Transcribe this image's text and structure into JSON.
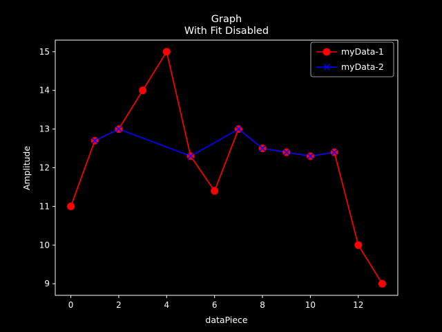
{
  "chart_data": {
    "type": "line",
    "title": "Graph",
    "subtitle": "With Fit Disabled",
    "xlabel": "dataPiece",
    "ylabel": "Amplitude",
    "xlim": [
      -0.65,
      13.65
    ],
    "ylim": [
      8.7,
      15.3
    ],
    "xticks": [
      0,
      2,
      4,
      6,
      8,
      10,
      12
    ],
    "yticks": [
      9,
      10,
      11,
      12,
      13,
      14,
      15
    ],
    "grid": false,
    "legend_position": "top-right",
    "background": "#000000",
    "series": [
      {
        "name": "myData-1",
        "color": "#ff0000",
        "marker": "circle",
        "x": [
          0,
          1,
          2,
          3,
          4,
          5,
          6,
          7,
          8,
          9,
          10,
          11,
          12,
          13
        ],
        "y": [
          11,
          12.7,
          13,
          14,
          15,
          12.3,
          11.4,
          13,
          12.5,
          12.4,
          12.3,
          12.4,
          10,
          9
        ]
      },
      {
        "name": "myData-2",
        "color": "#0000ff",
        "marker": "x",
        "x": [
          1,
          2,
          5,
          7,
          8,
          9,
          10,
          11
        ],
        "y": [
          12.7,
          13,
          12.3,
          13,
          12.5,
          12.4,
          12.3,
          12.4
        ]
      }
    ]
  }
}
